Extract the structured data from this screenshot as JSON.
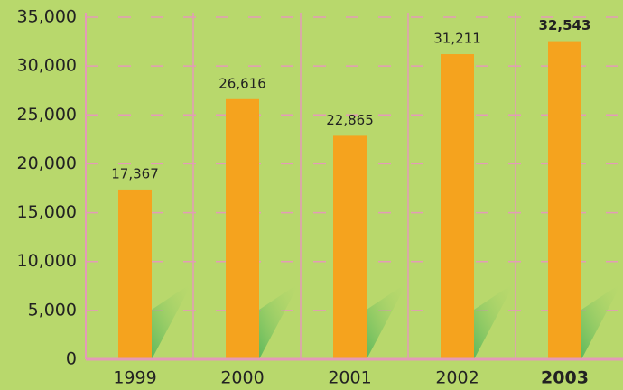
{
  "chart_data": {
    "type": "bar",
    "categories": [
      "1999",
      "2000",
      "2001",
      "2002",
      "2003"
    ],
    "values": [
      17367,
      26616,
      22865,
      31211,
      32543
    ],
    "value_labels": [
      "17,367",
      "26,616",
      "22,865",
      "31,211",
      "32,543"
    ],
    "color": "#f5a31e",
    "ylim": [
      0,
      35000
    ],
    "yticks": [
      0,
      {
        "value": 5000,
        "label": "5,000"
      },
      {
        "value": 10000,
        "label": "10,000"
      },
      {
        "value": 15000,
        "label": "15,000"
      },
      {
        "value": 20000,
        "label": "20,000"
      },
      {
        "value": 25000,
        "label": "25,000"
      },
      {
        "value": 30000,
        "label": "30,000"
      },
      {
        "value": 35000,
        "label": "35,000"
      }
    ],
    "grid": true
  }
}
